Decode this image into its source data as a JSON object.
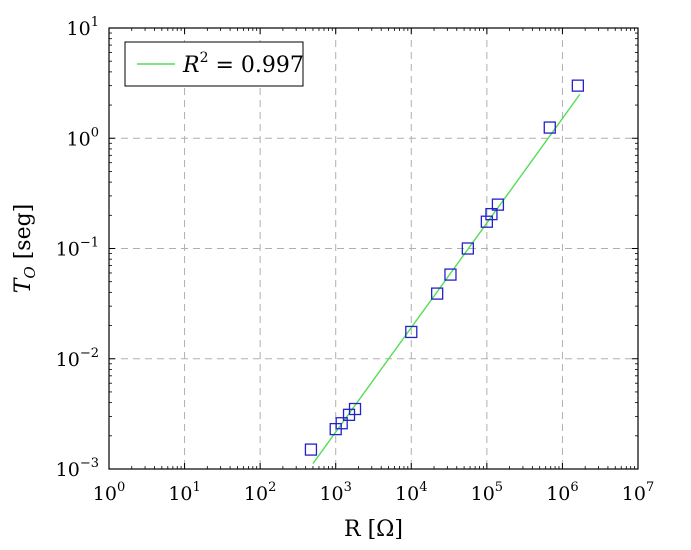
{
  "chart_data": {
    "type": "scatter",
    "title": "",
    "xlabel": "R [Ω]",
    "ylabel": "T_O [seg]",
    "xscale": "log",
    "yscale": "log",
    "xlim": [
      1,
      10000000
    ],
    "ylim": [
      0.001,
      10
    ],
    "grid": true,
    "legend_position": "top-left",
    "x_ticks": [
      {
        "base": "10",
        "exp": "0"
      },
      {
        "base": "10",
        "exp": "1"
      },
      {
        "base": "10",
        "exp": "2"
      },
      {
        "base": "10",
        "exp": "3"
      },
      {
        "base": "10",
        "exp": "4"
      },
      {
        "base": "10",
        "exp": "5"
      },
      {
        "base": "10",
        "exp": "6"
      },
      {
        "base": "10",
        "exp": "7"
      }
    ],
    "y_ticks": [
      {
        "base": "10",
        "exp": "−3"
      },
      {
        "base": "10",
        "exp": "−2"
      },
      {
        "base": "10",
        "exp": "−1"
      },
      {
        "base": "10",
        "exp": "0"
      },
      {
        "base": "10",
        "exp": "1"
      }
    ],
    "series": [
      {
        "marker": "square",
        "color": "#2222cc",
        "points": [
          {
            "x": 470,
            "y": 0.0015
          },
          {
            "x": 1000,
            "y": 0.0023
          },
          {
            "x": 1200,
            "y": 0.0026
          },
          {
            "x": 1500,
            "y": 0.0031
          },
          {
            "x": 1800,
            "y": 0.0035
          },
          {
            "x": 10000,
            "y": 0.0175
          },
          {
            "x": 22000,
            "y": 0.039
          },
          {
            "x": 33000,
            "y": 0.058
          },
          {
            "x": 56000,
            "y": 0.1
          },
          {
            "x": 100000,
            "y": 0.175
          },
          {
            "x": 115000,
            "y": 0.205
          },
          {
            "x": 140000,
            "y": 0.25
          },
          {
            "x": 680000,
            "y": 1.25
          },
          {
            "x": 1600000,
            "y": 3.0
          }
        ]
      },
      {
        "type": "line",
        "color": "#55dd55",
        "legend": {
          "label": "R",
          "sup": "2",
          "rest": " = 0.997"
        },
        "points": [
          {
            "x": 500,
            "y": 0.00112
          },
          {
            "x": 1700000,
            "y": 2.5
          }
        ]
      }
    ]
  }
}
